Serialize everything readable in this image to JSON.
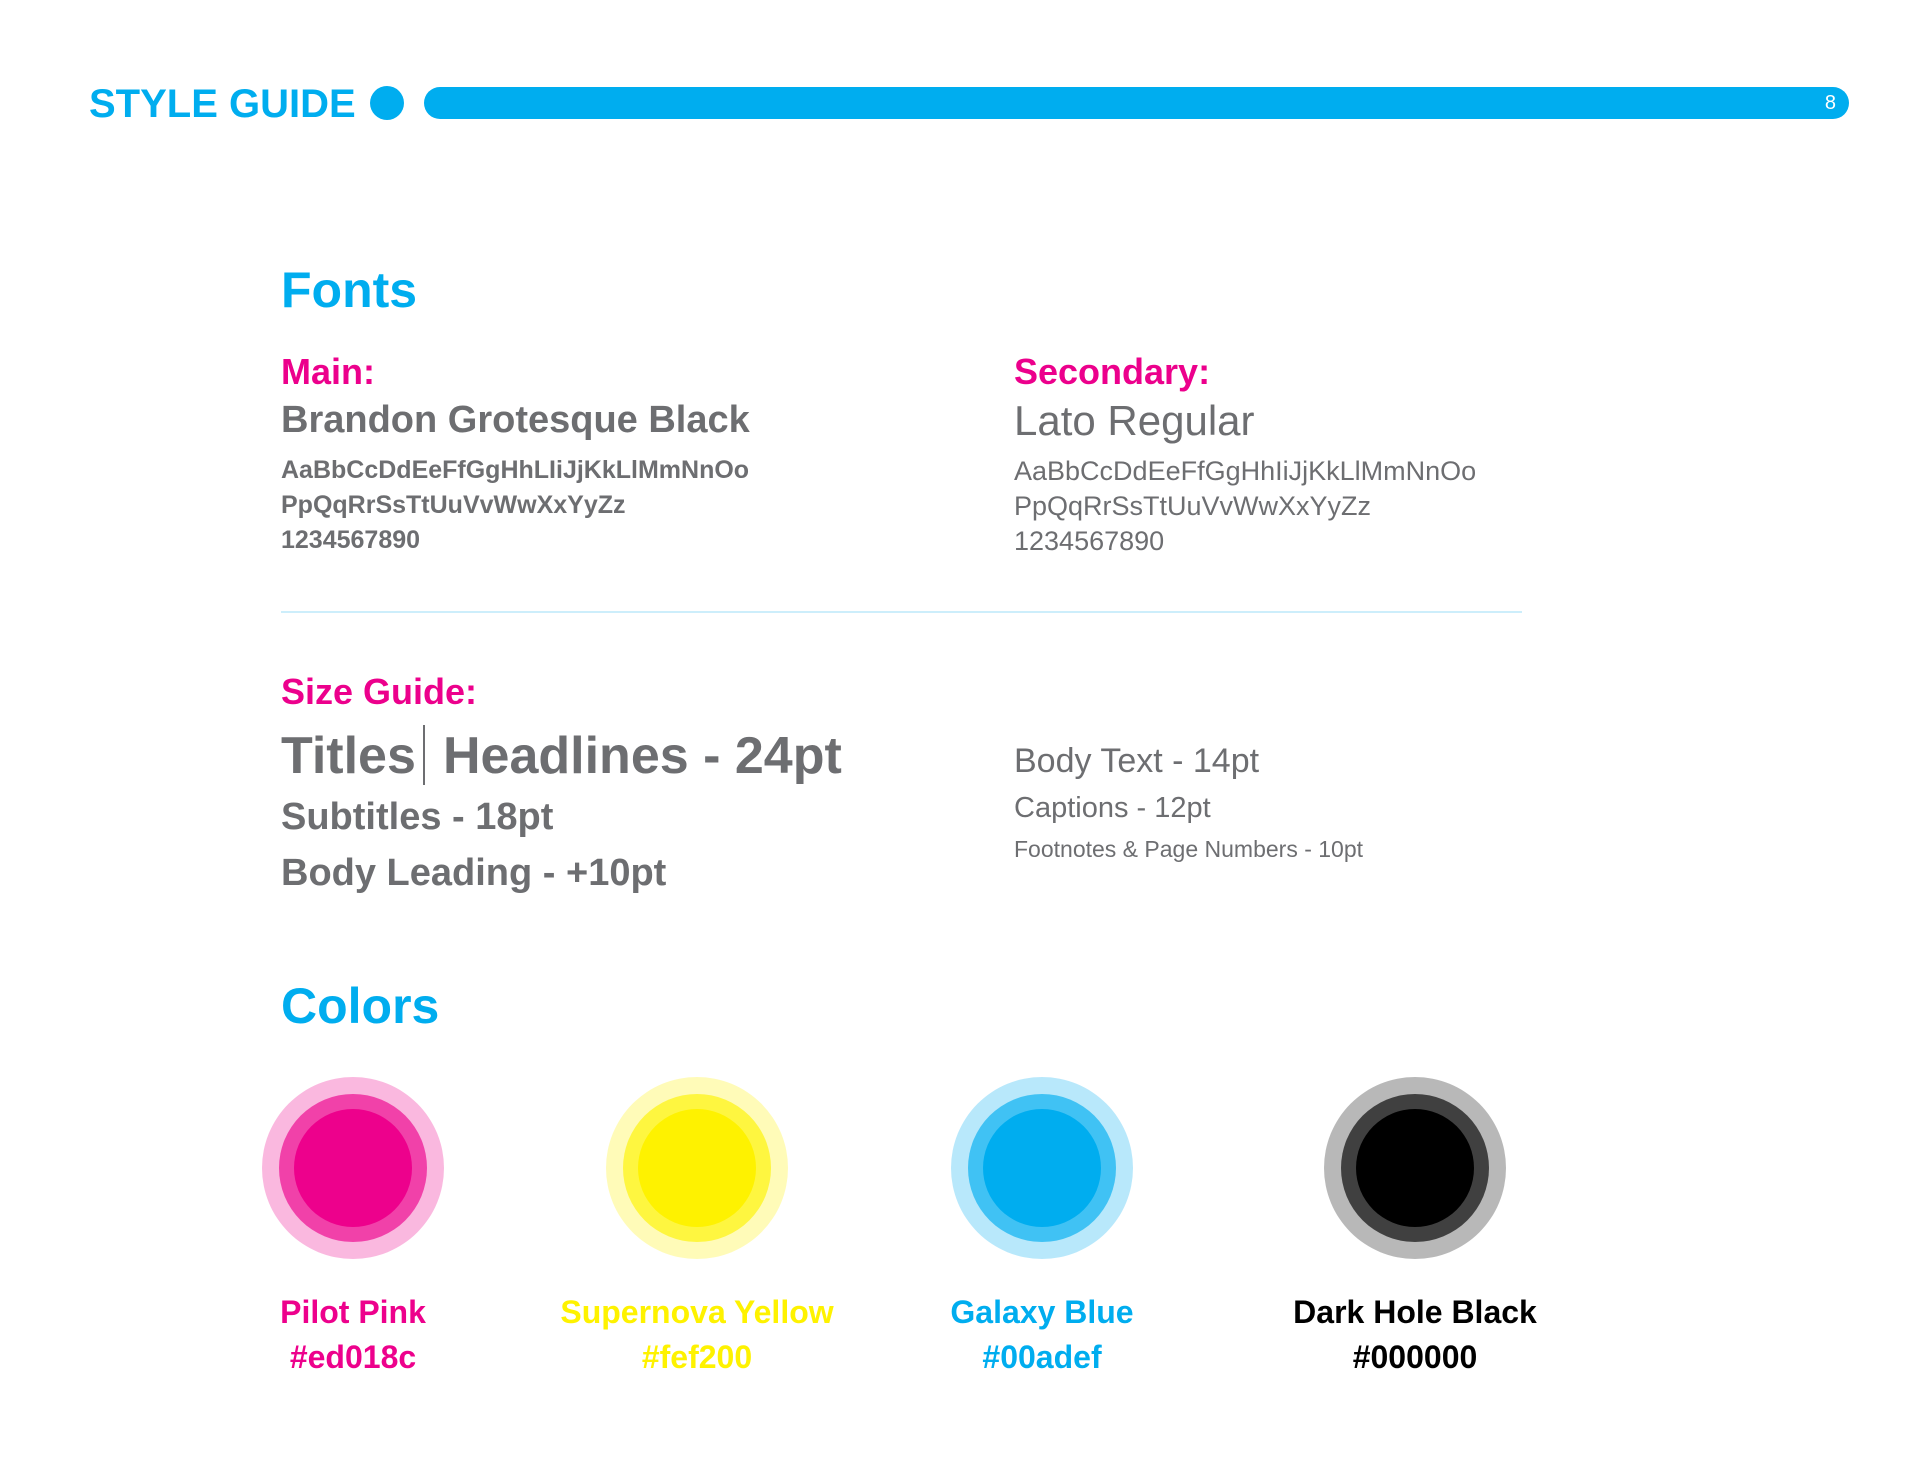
{
  "header": {
    "title": "STYLE GUIDE",
    "page_number": "8"
  },
  "fonts": {
    "title": "Fonts",
    "main": {
      "label": "Main:",
      "name": "Brandon Grotesque Black",
      "samples": [
        "AaBbCcDdEeFfGgHhLIiJjKkLlMmNnOo",
        "PpQqRrSsTtUuVvWwXxYyZz",
        "1234567890"
      ]
    },
    "secondary": {
      "label": "Secondary:",
      "name": "Lato Regular",
      "samples": [
        "AaBbCcDdEeFfGgHhIiJjKkLlMmNnOo",
        "PpQqRrSsTtUuVvWwXxYyZz",
        "1234567890"
      ]
    }
  },
  "size_guide": {
    "label": "Size Guide:",
    "main": [
      "Titles",
      "Headlines - 24pt",
      "Subtitles - 18pt",
      "Body Leading - +10pt"
    ],
    "secondary": [
      "Body Text - 14pt",
      "Captions - 12pt",
      "Footnotes & Page Numbers - 10pt"
    ]
  },
  "colors": {
    "title": "Colors",
    "swatches": [
      {
        "name": "Pilot Pink",
        "hex": "#ed018c"
      },
      {
        "name": "Supernova Yellow",
        "hex": "#fef200"
      },
      {
        "name": "Galaxy Blue",
        "hex": "#00adef"
      },
      {
        "name": "Dark Hole Black",
        "hex": "#000000"
      }
    ]
  }
}
